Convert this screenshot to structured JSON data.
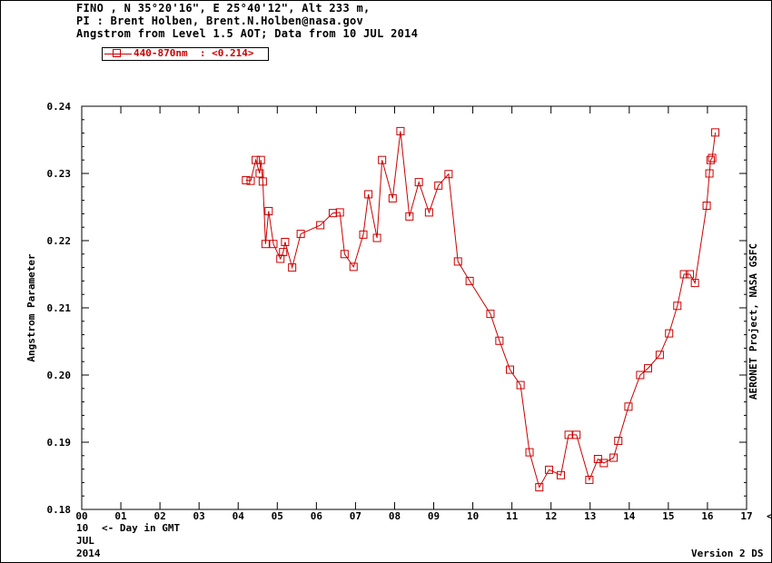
{
  "header": {
    "line1": "FINO , N 35°20'16\", E 25°40'12\", Alt 233 m,",
    "line2": "PI : Brent Holben, Brent.N.Holben@nasa.gov",
    "line3": "Angstrom from Level 1.5 AOT; Data from 10 JUL 2014"
  },
  "legend": {
    "label": "440-870nm  : <0.214>",
    "color": "#cc0000"
  },
  "side_credit": "AERONET Project, NASA GSFC",
  "footer": {
    "day": "10",
    "day_label": "<- Day in GMT",
    "month": "JUL",
    "year": "2014",
    "version": "Version 2 DS"
  },
  "chart_data": {
    "type": "line",
    "ylabel": "Angstrom Parameter",
    "xlabel": "<- Hour in GMT",
    "xlim": [
      0,
      17
    ],
    "ylim": [
      0.18,
      0.24
    ],
    "x_ticks": [
      "00",
      "01",
      "02",
      "03",
      "04",
      "05",
      "06",
      "07",
      "08",
      "09",
      "10",
      "11",
      "12",
      "13",
      "14",
      "15",
      "16",
      "17"
    ],
    "y_ticks": [
      "0.18",
      "0.19",
      "0.20",
      "0.21",
      "0.22",
      "0.23",
      "0.24"
    ],
    "series": [
      {
        "name": "440-870nm",
        "color": "#cc0000",
        "x": [
          4.2,
          4.32,
          4.45,
          4.55,
          4.58,
          4.63,
          4.7,
          4.78,
          4.9,
          5.08,
          5.15,
          5.2,
          5.38,
          5.6,
          6.1,
          6.42,
          6.6,
          6.72,
          6.95,
          7.2,
          7.33,
          7.55,
          7.68,
          7.95,
          8.15,
          8.38,
          8.62,
          8.88,
          9.12,
          9.38,
          9.62,
          9.92,
          10.45,
          10.68,
          10.95,
          11.22,
          11.45,
          11.7,
          11.95,
          12.25,
          12.45,
          12.65,
          12.98,
          13.2,
          13.35,
          13.6,
          13.72,
          13.98,
          14.28,
          14.48,
          14.78,
          15.02,
          15.23,
          15.4,
          15.55,
          15.68,
          15.98,
          16.05,
          16.08,
          16.12,
          16.2
        ],
        "y": [
          0.229,
          0.2289,
          0.232,
          0.23,
          0.232,
          0.2288,
          0.2195,
          0.2244,
          0.2195,
          0.2173,
          0.2183,
          0.2198,
          0.216,
          0.221,
          0.2223,
          0.2241,
          0.2242,
          0.218,
          0.2161,
          0.2209,
          0.2269,
          0.2204,
          0.232,
          0.2263,
          0.2363,
          0.2236,
          0.2287,
          0.2242,
          0.2282,
          0.2299,
          0.2169,
          0.214,
          0.2091,
          0.2051,
          0.2008,
          0.1985,
          0.1885,
          0.1833,
          0.1859,
          0.1851,
          0.1911,
          0.1911,
          0.1844,
          0.1875,
          0.1869,
          0.1877,
          0.1902,
          0.1953,
          0.2,
          0.201,
          0.203,
          0.2062,
          0.2103,
          0.215,
          0.215,
          0.2137,
          0.2252,
          0.23,
          0.232,
          0.2323,
          0.2361
        ]
      }
    ]
  }
}
